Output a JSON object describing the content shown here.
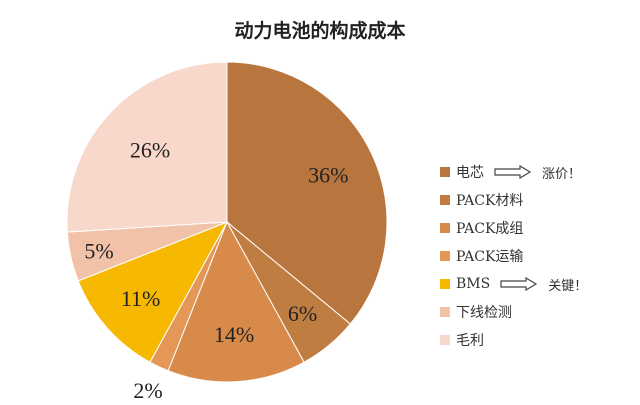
{
  "chart_data": {
    "type": "pie",
    "title": "动力电池的构成成本",
    "slices": [
      {
        "name": "电芯",
        "value": 36,
        "label": "36%",
        "color": "#b9753e"
      },
      {
        "name": "PACK材料",
        "value": 6,
        "label": "6%",
        "color": "#c07d42"
      },
      {
        "name": "PACK成组",
        "value": 14,
        "label": "14%",
        "color": "#d88a4b"
      },
      {
        "name": "PACK运输",
        "value": 2,
        "label": "2%",
        "color": "#e49757"
      },
      {
        "name": "BMS",
        "value": 11,
        "label": "11%",
        "color": "#f6b800"
      },
      {
        "name": "下线检测",
        "value": 5,
        "label": "5%",
        "color": "#f2c2a8"
      },
      {
        "name": "毛利",
        "value": 26,
        "label": "26%",
        "color": "#f8d8cb"
      }
    ],
    "legend_position": "right",
    "annotations": [
      {
        "target": "电芯",
        "text": "涨价！"
      },
      {
        "target": "BMS",
        "text": "关键！"
      }
    ]
  }
}
